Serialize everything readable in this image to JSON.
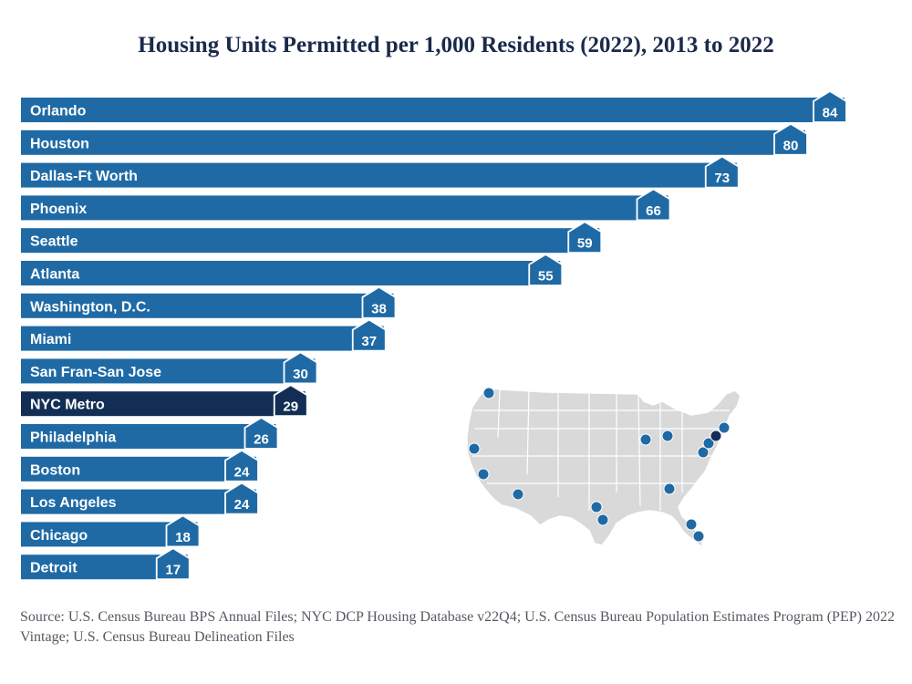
{
  "title": "Housing Units Permitted per 1,000 Residents (2022), 2013 to 2022",
  "source": "Source: U.S. Census Bureau BPS Annual Files; NYC DCP Housing Database v22Q4; U.S.  Census Bureau Population Estimates Program (PEP) 2022 Vintage; U.S. Census Bureau Delineation Files",
  "colors": {
    "bar": "#1f6aa5",
    "highlight": "#132e55",
    "label": "#ffffff",
    "map_land": "#d9d9d9",
    "map_border": "#ffffff",
    "dot": "#1f6aa5",
    "dot_highlight": "#132e55"
  },
  "chart_data": {
    "type": "bar",
    "orientation": "horizontal",
    "categories": [
      "Orlando",
      "Houston",
      "Dallas-Ft Worth",
      "Phoenix",
      "Seattle",
      "Atlanta",
      "Washington, D.C.",
      "Miami",
      "San Fran-San Jose",
      "NYC Metro",
      "Philadelphia",
      "Boston",
      "Los Angeles",
      "Chicago",
      "Detroit"
    ],
    "values": [
      84,
      80,
      73,
      66,
      59,
      55,
      38,
      37,
      30,
      29,
      26,
      24,
      24,
      18,
      17
    ],
    "highlight": "NYC Metro",
    "data_labels": true,
    "marker": "house-icon"
  },
  "map": {
    "icon": "us-map-icon",
    "highlight": "NYC Metro"
  }
}
